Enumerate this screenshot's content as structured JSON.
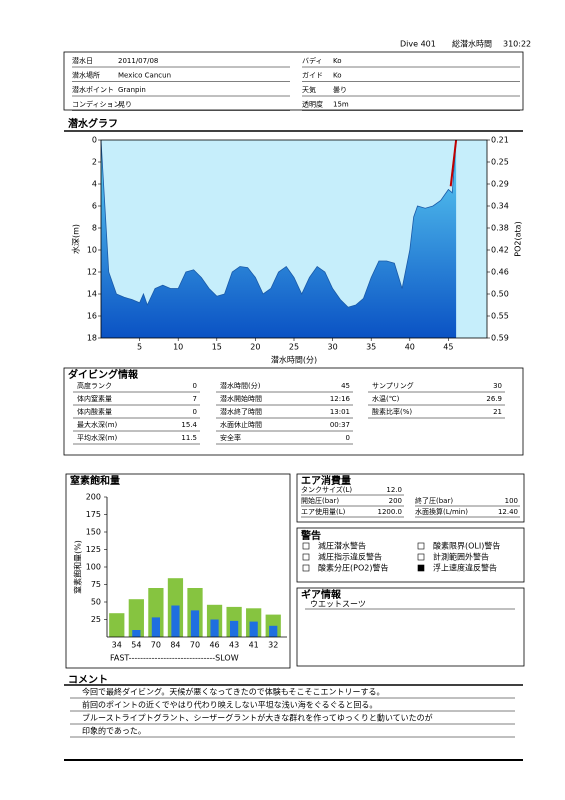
{
  "header": {
    "dive": "Dive 401",
    "total_label": "総潜水時間",
    "total": "310:22"
  },
  "info": {
    "rows": [
      [
        {
          "label": "潜水日",
          "value": "2011/07/08"
        },
        {
          "label": "バディ",
          "value": "Ko"
        }
      ],
      [
        {
          "label": "潜水場所",
          "value": "Mexico Cancun"
        },
        {
          "label": "ガイド",
          "value": "Ko"
        }
      ],
      [
        {
          "label": "潜水ポイント",
          "value": "Granpin"
        },
        {
          "label": "天気",
          "value": "曇り"
        }
      ],
      [
        {
          "label": "コンディション",
          "value": "晃り"
        },
        {
          "label": "透明度",
          "value": "15m"
        }
      ]
    ]
  },
  "chart_data": [
    {
      "type": "area",
      "title": "潜水グラフ",
      "x_label": "潜水時間(分)",
      "y_label": "水深(m)",
      "y2_label": "PO2(ata)",
      "xlim": [
        0,
        50
      ],
      "xticks": [
        5,
        10,
        15,
        20,
        25,
        30,
        35,
        40,
        45
      ],
      "ylim": [
        18,
        0
      ],
      "yticks": [
        0,
        2,
        4,
        6,
        8,
        10,
        12,
        14,
        16,
        18
      ],
      "y2lim": [
        0.588,
        0.21
      ],
      "y2ticks": [
        {
          "value": 0.21,
          "label": "0.21"
        },
        {
          "value": 0.252,
          "label": "0.25"
        },
        {
          "value": 0.294,
          "label": "0.29"
        },
        {
          "value": 0.336,
          "label": "0.34"
        },
        {
          "value": 0.378,
          "label": "0.38"
        },
        {
          "value": 0.42,
          "label": "0.42"
        },
        {
          "value": 0.462,
          "label": "0.46"
        },
        {
          "value": 0.504,
          "label": "0.50"
        },
        {
          "value": 0.546,
          "label": "0.55"
        },
        {
          "value": 0.588,
          "label": "0.59"
        }
      ],
      "series": [
        {
          "type": "area",
          "color": "#1a5aa8",
          "x": [
            0,
            1,
            2,
            3,
            4,
            5,
            5.5,
            6,
            7,
            8,
            9,
            10,
            11,
            12,
            13,
            14,
            15,
            16,
            17,
            18,
            19,
            20,
            21,
            22,
            23,
            24,
            25,
            26,
            27,
            28,
            29,
            30,
            31,
            32,
            33,
            34,
            35,
            36,
            37,
            38,
            39,
            40,
            40.5,
            41,
            42,
            43,
            44,
            45,
            45.5,
            46
          ],
          "values": [
            0,
            12,
            14,
            14.3,
            14.5,
            14.8,
            14,
            15,
            13.5,
            13.2,
            13.5,
            13.5,
            12,
            11.8,
            12.5,
            13.5,
            14.2,
            14,
            12,
            11.5,
            11.6,
            12.5,
            14,
            13.5,
            12,
            11.5,
            12.5,
            14,
            12.5,
            11.5,
            12,
            13.5,
            14.5,
            15.2,
            15,
            14.4,
            12.5,
            11,
            11,
            11.2,
            13.5,
            10,
            7,
            6,
            6.2,
            6,
            5.5,
            4.5,
            4.8,
            0
          ]
        },
        {
          "type": "line",
          "color": "#c00000",
          "x": [
            45.3,
            46
          ],
          "values": [
            4.2,
            0
          ]
        }
      ]
    },
    {
      "type": "bar",
      "title": "窒素飽和量",
      "y_label": "窒素飽和量(%)",
      "x_label": "FAST------------------------------SLOW",
      "categories": [
        "34",
        "54",
        "70",
        "84",
        "70",
        "46",
        "43",
        "41",
        "32"
      ],
      "ylim": [
        0,
        200
      ],
      "yticks": [
        25,
        50,
        75,
        100,
        125,
        150,
        175,
        200
      ],
      "series": [
        {
          "color": "#86c440",
          "values": [
            34,
            54,
            70,
            84,
            70,
            46,
            43,
            41,
            32
          ]
        },
        {
          "color": "#1f6fe0",
          "values": [
            0,
            10,
            28,
            45,
            38,
            25,
            23,
            22,
            16
          ]
        }
      ]
    }
  ],
  "details": {
    "title": "ダイビング情報",
    "columns": [
      [
        {
          "label": "高度ランク",
          "value": "0"
        },
        {
          "label": "体内窒素量",
          "value": "7"
        },
        {
          "label": "体内酸素量",
          "value": "0"
        },
        {
          "label": "最大水深(m)",
          "value": "15.4"
        },
        {
          "label": "平均水深(m)",
          "value": "11.5"
        }
      ],
      [
        {
          "label": "潜水時間(分)",
          "value": "45"
        },
        {
          "label": "潜水開始時間",
          "value": "12:16"
        },
        {
          "label": "潜水終了時間",
          "value": "13:01"
        },
        {
          "label": "水面休止時間",
          "value": "00:37"
        },
        {
          "label": "安全率",
          "value": "0"
        }
      ],
      [
        {
          "label": "サンプリング",
          "value": "30"
        },
        {
          "label": "水温(℃)",
          "value": "26.9"
        },
        {
          "label": "酸素比率(%)",
          "value": "21"
        }
      ]
    ]
  },
  "air": {
    "title": "エア消費量",
    "rows": [
      [
        {
          "label": "タンクサイズ(L)",
          "value": "12.0"
        }
      ],
      [
        {
          "label": "開始圧(bar)",
          "value": "200"
        },
        {
          "label": "終了圧(bar)",
          "value": "100"
        }
      ],
      [
        {
          "label": "エア使用量(L)",
          "value": "1200.0"
        },
        {
          "label": "水面換算(L/min)",
          "value": "12.40"
        }
      ]
    ]
  },
  "warnings": {
    "title": "警告",
    "items": [
      {
        "label": "減圧潜水警告",
        "checked": false
      },
      {
        "label": "酸素限界(OLI)警告",
        "checked": false
      },
      {
        "label": "減圧指示違反警告",
        "checked": false
      },
      {
        "label": "計測範囲外警告",
        "checked": false
      },
      {
        "label": "酸素分圧(PO2)警告",
        "checked": false
      },
      {
        "label": "浮上速度違反警告",
        "checked": true
      }
    ]
  },
  "gear": {
    "title": "ギア情報",
    "items": [
      "ウエットスーツ"
    ]
  },
  "comment": {
    "title": "コメント",
    "lines": [
      "今回で最終ダイビング。天候が悪くなってきたので体験もそこそこエントリーする。",
      "前回のポイントの近くでやはり代わり映えしない平坦な浅い海をぐるぐると回る。",
      "ブルーストライプトグラント、シーザーグラントが大きな群れを作ってゆっくりと動いていたのが",
      "印象的であった。"
    ]
  }
}
